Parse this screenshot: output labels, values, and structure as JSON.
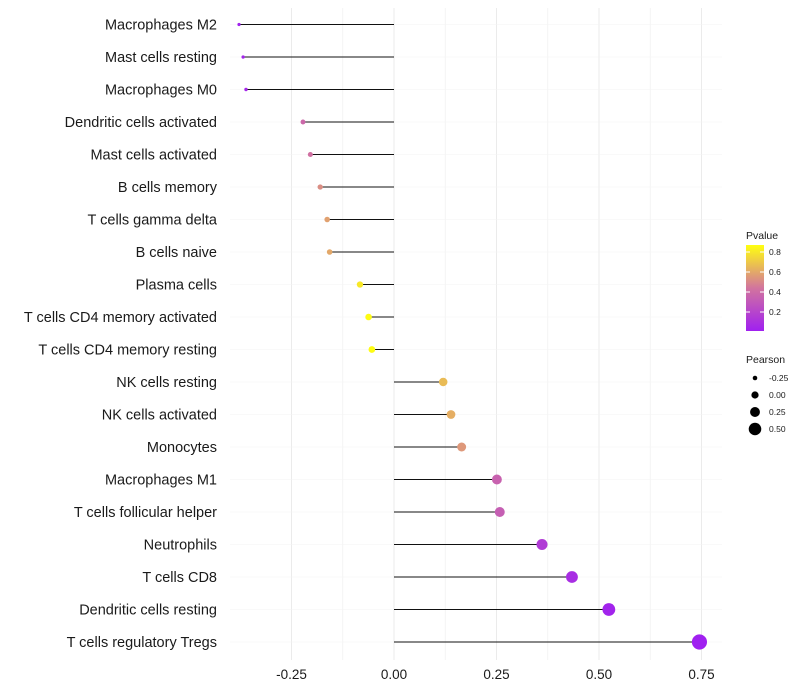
{
  "chart_data": {
    "type": "lollipop",
    "title": "",
    "xlabel": "",
    "ylabel": "",
    "xlim": [
      -0.4,
      0.8
    ],
    "xticks": [
      -0.25,
      0.0,
      0.25,
      0.5,
      0.75
    ],
    "xtick_labels": [
      "-0.25",
      "0.00",
      "0.25",
      "0.50",
      "0.75"
    ],
    "grid": true,
    "categories": [
      "Macrophages M2",
      "Mast cells resting",
      "Macrophages M0",
      "Dendritic cells activated",
      "Mast cells activated",
      "B cells memory",
      "T cells gamma delta",
      "B cells naive",
      "Plasma cells",
      "T cells CD4 memory activated",
      "T cells CD4 memory resting",
      "NK cells resting",
      "NK cells activated",
      "Monocytes",
      "Macrophages M1",
      "T cells follicular helper",
      "Neutrophils",
      "T cells CD8",
      "Dendritic cells resting",
      "T cells regulatory  Tregs"
    ],
    "pearson": [
      -0.378,
      -0.368,
      -0.361,
      -0.222,
      -0.204,
      -0.18,
      -0.163,
      -0.157,
      -0.083,
      -0.062,
      -0.054,
      0.12,
      0.139,
      0.165,
      0.251,
      0.258,
      0.361,
      0.434,
      0.524,
      0.745
    ],
    "pvalue": [
      0.02,
      0.04,
      0.05,
      0.38,
      0.42,
      0.52,
      0.58,
      0.6,
      0.8,
      0.86,
      0.86,
      0.66,
      0.62,
      0.55,
      0.35,
      0.33,
      0.15,
      0.08,
      0.03,
      0.01
    ],
    "color_scale": {
      "low": "#a020f0",
      "mid": "#d2749e",
      "high": "#ffff10"
    },
    "legend_color": {
      "title": "Pvalue",
      "labels": [
        "0.8",
        "0.6",
        "0.4",
        "0.2"
      ],
      "values": [
        0.8,
        0.6,
        0.4,
        0.2
      ],
      "range": [
        0.01,
        0.87
      ]
    },
    "legend_size": {
      "title": "Pearson",
      "labels": [
        "-0.25",
        "0.00",
        "0.25",
        "0.50"
      ],
      "values": [
        -0.25,
        0.0,
        0.25,
        0.5
      ]
    },
    "legend_placement": "right"
  }
}
